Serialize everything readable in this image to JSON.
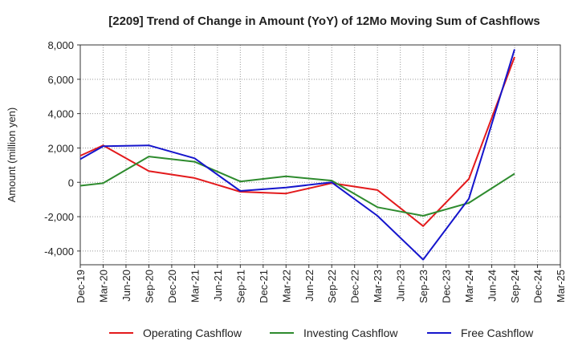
{
  "chart_data": {
    "type": "line",
    "title": "[2209]  Trend of Change in Amount (YoY) of 12Mo Moving Sum of Cashflows",
    "xlabel": "",
    "ylabel": "Amount (million yen)",
    "ylim": [
      -4800,
      8000
    ],
    "yticks": [
      8000,
      6000,
      4000,
      2000,
      0,
      -2000,
      -4000
    ],
    "ytick_labels": [
      "8,000",
      "6,000",
      "4,000",
      "2,000",
      "0",
      "-2,000",
      "-4,000"
    ],
    "categories": [
      "Dec-19",
      "Mar-20",
      "Jun-20",
      "Sep-20",
      "Dec-20",
      "Mar-21",
      "Jun-21",
      "Sep-21",
      "Dec-21",
      "Mar-22",
      "Jun-22",
      "Sep-22",
      "Dec-22",
      "Mar-23",
      "Jun-23",
      "Sep-23",
      "Dec-23",
      "Mar-24",
      "Jun-24",
      "Sep-24",
      "Dec-24",
      "Mar-25"
    ],
    "grid": true,
    "legend_position": "bottom",
    "series": [
      {
        "name": "Operating Cashflow",
        "color": "#e31a1c",
        "values": [
          1550,
          2150,
          null,
          650,
          null,
          250,
          null,
          -550,
          null,
          -650,
          null,
          -50,
          null,
          -450,
          null,
          -2550,
          null,
          200,
          null,
          7300,
          null,
          null
        ]
      },
      {
        "name": "Investing Cashflow",
        "color": "#2e8b2e",
        "values": [
          -200,
          -50,
          null,
          1500,
          null,
          1200,
          null,
          50,
          null,
          350,
          null,
          100,
          null,
          -1450,
          null,
          -1950,
          null,
          -1200,
          null,
          500,
          null,
          null
        ]
      },
      {
        "name": "Free Cashflow",
        "color": "#1515cc",
        "values": [
          1350,
          2100,
          null,
          2150,
          null,
          1400,
          null,
          -500,
          null,
          -300,
          null,
          0,
          null,
          -1950,
          null,
          -4500,
          null,
          -950,
          null,
          7750,
          null,
          null
        ]
      }
    ]
  }
}
